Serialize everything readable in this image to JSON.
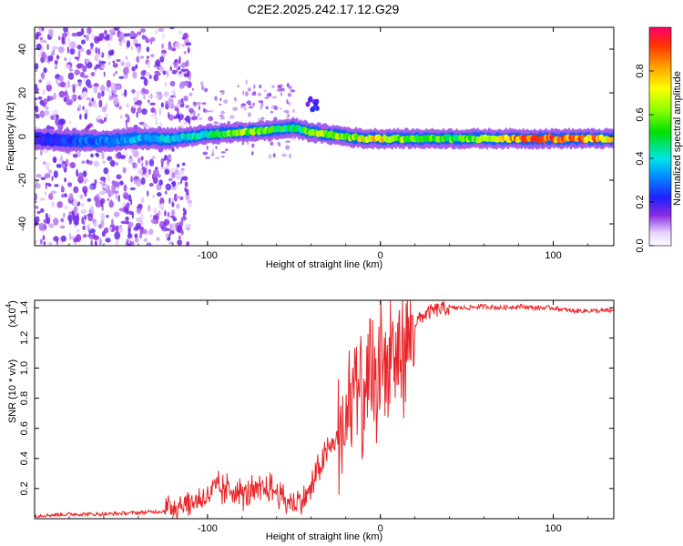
{
  "title": "C2E2.2025.242.17.12.G29",
  "chart_data": [
    {
      "type": "heatmap",
      "title": "C2E2.2025.242.17.12.G29",
      "xlabel": "Height of straight line (km)",
      "ylabel": "Frequency (Hz)",
      "xlim": [
        -200,
        135
      ],
      "ylim": [
        -50,
        50
      ],
      "xticks": [
        -100,
        0,
        100
      ],
      "xtick_labels": [
        "-100",
        "0",
        "100"
      ],
      "yticks": [
        40,
        20,
        0,
        -20,
        -40
      ],
      "ytick_labels": [
        "40",
        "20",
        "0",
        "-20",
        "-40"
      ],
      "ridge": {
        "x": [
          -200,
          -180,
          -160,
          -140,
          -120,
          -100,
          -80,
          -60,
          -50,
          -40,
          -30,
          -20,
          -10,
          0,
          20,
          40,
          60,
          80,
          100,
          120,
          135
        ],
        "frequency": [
          -1,
          -2,
          -2,
          -1,
          -1,
          1,
          2,
          3,
          4,
          2,
          1,
          0,
          -1,
          -1,
          -1,
          -1,
          -1,
          -1,
          -1,
          -1,
          -1
        ],
        "amplitude": [
          0.2,
          0.25,
          0.3,
          0.35,
          0.4,
          0.45,
          0.6,
          0.55,
          0.45,
          0.6,
          0.6,
          0.6,
          0.7,
          0.8,
          0.55,
          0.55,
          0.6,
          0.85,
          0.9,
          0.85,
          0.8
        ]
      },
      "colorbar": {
        "label": "Normalized spectral amplitude",
        "range": [
          0,
          1
        ],
        "ticks": [
          0.0,
          0.2,
          0.4,
          0.6,
          0.8
        ],
        "tick_labels": [
          "0.0",
          "0.2",
          "0.4",
          "0.6",
          "0.8"
        ]
      }
    },
    {
      "type": "line",
      "xlabel": "Height of straight line (km)",
      "ylabel": "SNR (10 * v/v)",
      "multiplier": "(x10",
      "multiplier_exp": "4",
      "multiplier_close": ")",
      "xlim": [
        -200,
        135
      ],
      "ylim": [
        0,
        1.45
      ],
      "xticks": [
        -100,
        0,
        100
      ],
      "xtick_labels": [
        "-100",
        "0",
        "100"
      ],
      "yticks": [
        0.2,
        0.4,
        0.6,
        0.8,
        1.0,
        1.2,
        1.4
      ],
      "ytick_labels": [
        "0.2",
        "0.4",
        "0.6",
        "0.8",
        "1.0",
        "1.2",
        "1.4"
      ],
      "series": [
        {
          "name": "SNR",
          "color": "#e8262a",
          "x": [
            -200,
            -180,
            -160,
            -140,
            -125,
            -120,
            -110,
            -100,
            -95,
            -90,
            -85,
            -80,
            -75,
            -70,
            -65,
            -60,
            -55,
            -50,
            -45,
            -40,
            -35,
            -30,
            -25,
            -20,
            -17,
            -15,
            -12,
            -10,
            -8,
            -5,
            -3,
            0,
            3,
            5,
            8,
            10,
            15,
            20,
            25,
            30,
            40,
            50,
            60,
            70,
            80,
            90,
            100,
            110,
            120,
            135
          ],
          "values": [
            0.02,
            0.03,
            0.03,
            0.04,
            0.05,
            0.09,
            0.1,
            0.15,
            0.2,
            0.18,
            0.2,
            0.16,
            0.17,
            0.18,
            0.2,
            0.18,
            0.12,
            0.1,
            0.12,
            0.2,
            0.35,
            0.45,
            0.55,
            0.6,
            0.7,
            0.9,
            0.8,
            0.75,
            0.75,
            0.95,
            0.85,
            1.0,
            1.05,
            1.0,
            1.05,
            1.1,
            1.18,
            1.3,
            1.35,
            1.38,
            1.4,
            1.4,
            1.41,
            1.4,
            1.41,
            1.4,
            1.4,
            1.38,
            1.38,
            1.38
          ]
        }
      ]
    }
  ]
}
